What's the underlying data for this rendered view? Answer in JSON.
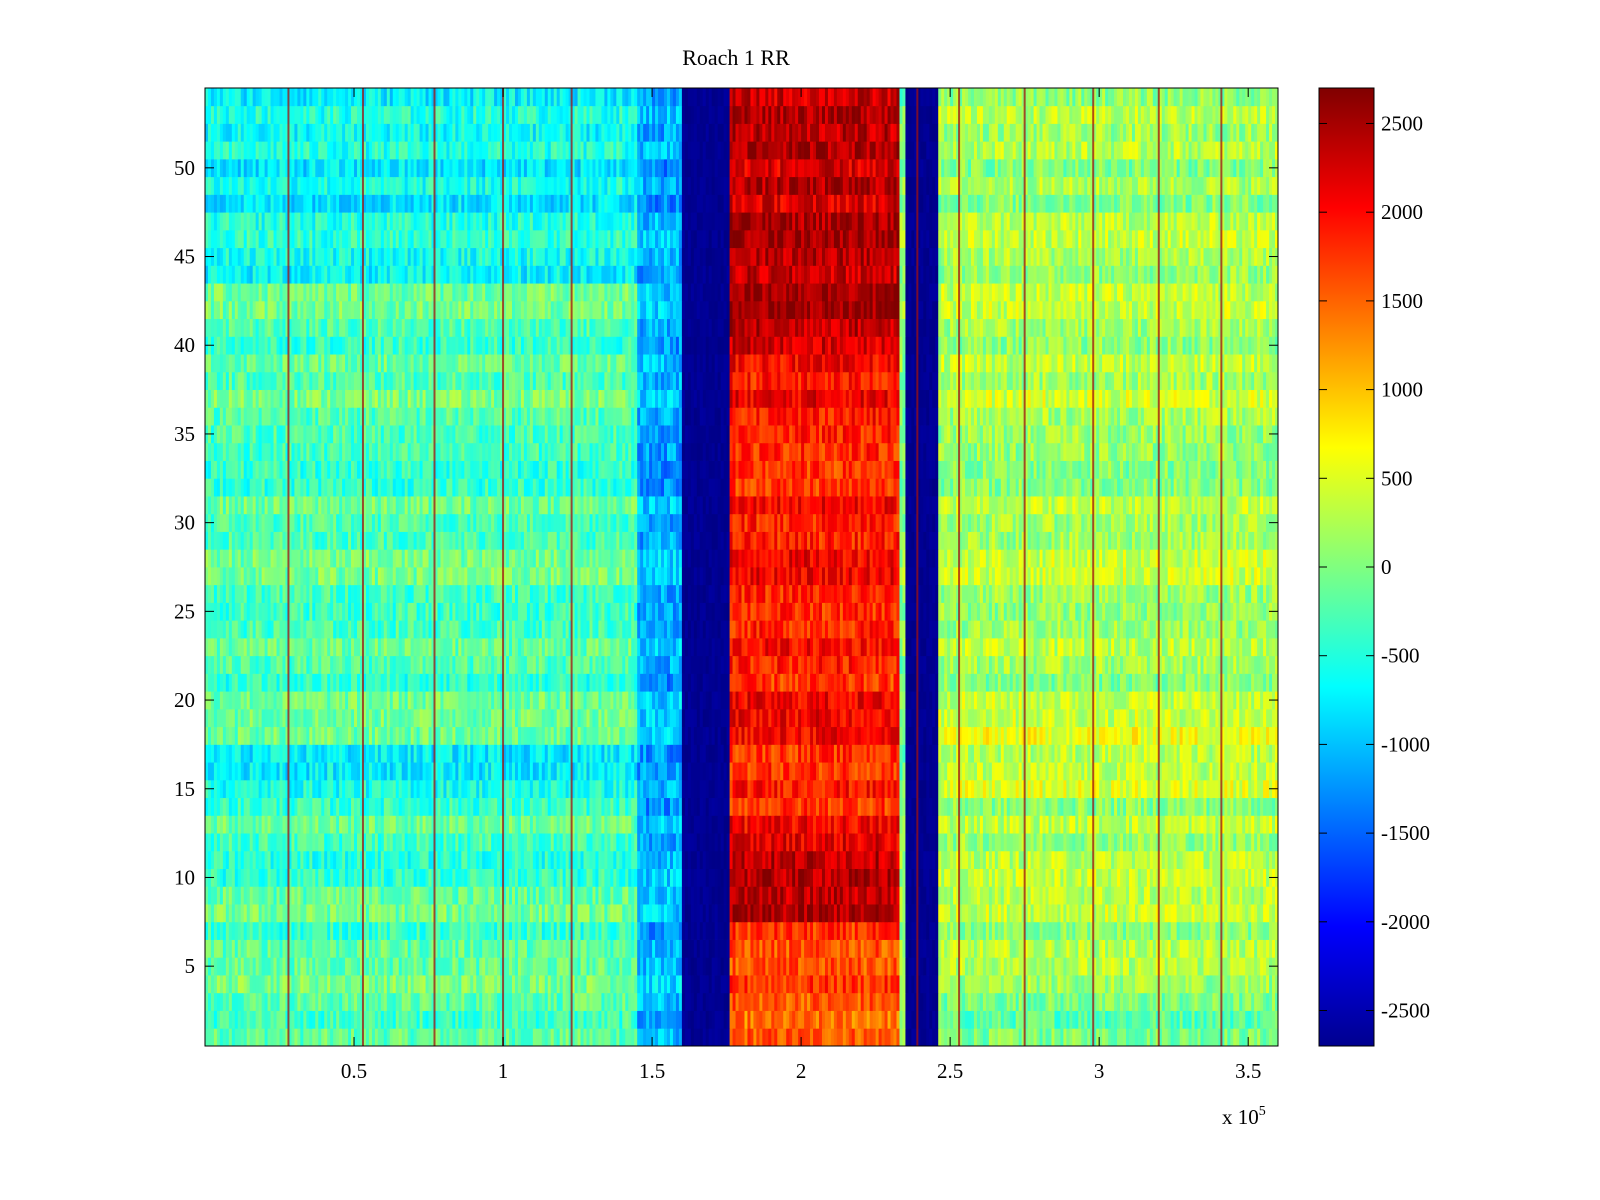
{
  "chart_data": {
    "type": "heatmap",
    "title": "Roach 1 RR",
    "xlabel": "",
    "ylabel": "",
    "x_multiplier_label": "x 10",
    "x_multiplier_exponent": "5",
    "xlim": [
      0,
      360000
    ],
    "ylim": [
      0.5,
      54.5
    ],
    "x_ticks": [
      50000,
      100000,
      150000,
      200000,
      250000,
      300000,
      350000
    ],
    "x_tick_labels": [
      "0.5",
      "1",
      "1.5",
      "2",
      "2.5",
      "3",
      "3.5"
    ],
    "y_ticks": [
      5,
      10,
      15,
      20,
      25,
      30,
      35,
      40,
      45,
      50
    ],
    "y_tick_labels": [
      "5",
      "10",
      "15",
      "20",
      "25",
      "30",
      "35",
      "40",
      "45",
      "50"
    ],
    "colorbar": {
      "colormap": "jet",
      "clim": [
        -2700,
        2700
      ],
      "ticks": [
        2500,
        2000,
        1500,
        1000,
        500,
        0,
        -500,
        -1000,
        -1500,
        -2000,
        -2500
      ],
      "tick_labels": [
        "2500",
        "2000",
        "1500",
        "1000",
        "500",
        "0",
        "-500",
        "-1000",
        "-1500",
        "-2000",
        "-2500"
      ]
    },
    "grid": false,
    "rows": 54,
    "x_regions": [
      {
        "x_start": 0,
        "x_end": 145000,
        "typical_value": -250
      },
      {
        "x_start": 145000,
        "x_end": 160000,
        "typical_value": -1100
      },
      {
        "x_start": 160000,
        "x_end": 176000,
        "typical_value": -2600
      },
      {
        "x_start": 176000,
        "x_end": 233000,
        "typical_value": 1900
      },
      {
        "x_start": 233000,
        "x_end": 235000,
        "typical_value": 0
      },
      {
        "x_start": 235000,
        "x_end": 246000,
        "typical_value": -2600
      },
      {
        "x_start": 246000,
        "x_end": 360000,
        "typical_value": 200
      }
    ],
    "vertical_streaks_x": [
      28000,
      53000,
      77000,
      100000,
      123000,
      239000,
      253000,
      275000,
      298000,
      320000,
      341000
    ]
  }
}
